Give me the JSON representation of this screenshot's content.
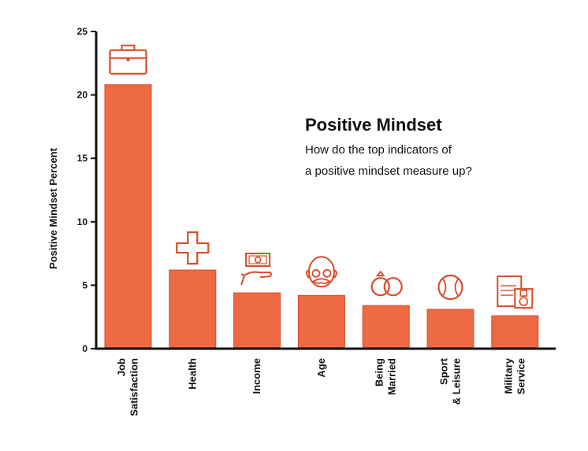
{
  "chart_data": {
    "type": "bar",
    "title": "Positive Mindset",
    "subtitle_lines": [
      "How do the top indicators of",
      "a positive mindset measure up?"
    ],
    "ylabel": "Positive Mindset Percent",
    "xlabel": "",
    "ylim": [
      0,
      25
    ],
    "yticks": [
      "0",
      "5",
      "10",
      "15",
      "20",
      "25"
    ],
    "grid": false,
    "bar_color": "#ee6a43",
    "bar_edge_color": "#d84c28",
    "categories": [
      {
        "lines": [
          "Job",
          "Satisfaction"
        ],
        "icon": "briefcase-icon"
      },
      {
        "lines": [
          "Health"
        ],
        "icon": "medical-cross-icon"
      },
      {
        "lines": [
          "Income"
        ],
        "icon": "money-in-hand-icon"
      },
      {
        "lines": [
          "Age"
        ],
        "icon": "elderly-face-icon"
      },
      {
        "lines": [
          "Being",
          "Married"
        ],
        "icon": "wedding-rings-icon"
      },
      {
        "lines": [
          "Sport",
          "& Leisure"
        ],
        "icon": "baseball-icon"
      },
      {
        "lines": [
          "Military",
          "Service"
        ],
        "icon": "military-medal-icon"
      }
    ],
    "values": [
      20.8,
      6.2,
      4.4,
      4.2,
      3.4,
      3.1,
      2.6
    ]
  }
}
